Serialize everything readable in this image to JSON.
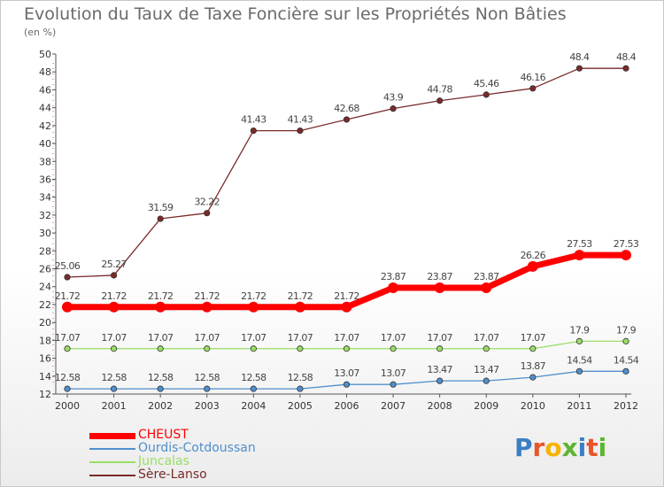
{
  "chart_data": {
    "type": "line",
    "title": "Evolution du Taux de Taxe Foncière sur les Propriétés Non Bâties",
    "subtitle": "(en %)",
    "x": [
      "2000",
      "2001",
      "2002",
      "2003",
      "2004",
      "2005",
      "2006",
      "2007",
      "2008",
      "2009",
      "2010",
      "2011",
      "2012"
    ],
    "ylim": [
      12,
      50
    ],
    "yticks": [
      12,
      14,
      16,
      18,
      20,
      22,
      24,
      26,
      28,
      30,
      32,
      34,
      36,
      38,
      40,
      42,
      44,
      46,
      48,
      50
    ],
    "grid": false,
    "legend_position": "bottom-left",
    "series": [
      {
        "name": "CHEUST",
        "color": "#ff0000",
        "labels": [
          "21.72",
          "21.72",
          "21.72",
          "21.72",
          "21.72",
          "21.72",
          "21.72",
          "23.87",
          "23.87",
          "23.87",
          "26.26",
          "27.53",
          "27.53"
        ],
        "values": [
          21.72,
          21.72,
          21.72,
          21.72,
          21.72,
          21.72,
          21.72,
          23.87,
          23.87,
          23.87,
          26.26,
          27.53,
          27.53
        ]
      },
      {
        "name": "Ourdis-Cotdoussan",
        "color": "#4f8fcc",
        "labels": [
          "12.58",
          "12.58",
          "12.58",
          "12.58",
          "12.58",
          "12.58",
          "13.07",
          "13.07",
          "13.47",
          "13.47",
          "13.87",
          "14.54",
          "14.54"
        ],
        "values": [
          12.58,
          12.58,
          12.58,
          12.58,
          12.58,
          12.58,
          13.07,
          13.07,
          13.47,
          13.47,
          13.87,
          14.54,
          14.54
        ]
      },
      {
        "name": "Juncalas",
        "color": "#99dd66",
        "labels": [
          "17.07",
          "17.07",
          "17.07",
          "17.07",
          "17.07",
          "17.07",
          "17.07",
          "17.07",
          "17.07",
          "17.07",
          "17.07",
          "17.9",
          "17.9"
        ],
        "values": [
          17.07,
          17.07,
          17.07,
          17.07,
          17.07,
          17.07,
          17.07,
          17.07,
          17.07,
          17.07,
          17.07,
          17.9,
          17.9
        ]
      },
      {
        "name": "Sère-Lanso",
        "color": "#7a2a2a",
        "labels": [
          "25.06",
          "25.27",
          "31.59",
          "32.22",
          "41.43",
          "41.43",
          "42.68",
          "43.9",
          "44.78",
          "45.46",
          "46.16",
          "48.4",
          "48.4"
        ],
        "values": [
          25.06,
          25.27,
          31.59,
          32.22,
          41.43,
          41.43,
          42.68,
          43.9,
          44.78,
          45.46,
          46.16,
          48.4,
          48.4
        ]
      }
    ]
  },
  "logo": {
    "letters": [
      {
        "char": "P",
        "color": "#3a7fc4"
      },
      {
        "char": "r",
        "color": "#e8552a"
      },
      {
        "char": "o",
        "color": "#f5b400"
      },
      {
        "char": "x",
        "color": "#5cb531"
      },
      {
        "char": "i",
        "color": "#3a7fc4"
      },
      {
        "char": "t",
        "color": "#e8552a"
      },
      {
        "char": "i",
        "color": "#5cb531"
      }
    ]
  }
}
